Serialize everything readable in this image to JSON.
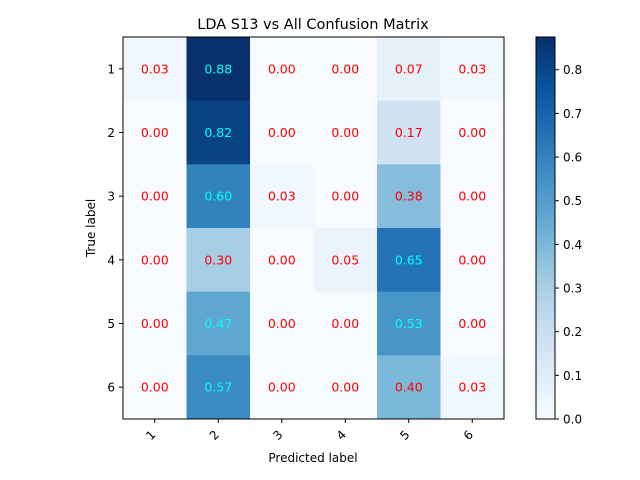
{
  "chart_data": {
    "type": "heatmap",
    "title": "LDA S13 vs All Confusion Matrix",
    "xlabel": "Predicted label",
    "ylabel": "True label",
    "x_categories": [
      "1",
      "2",
      "3",
      "4",
      "5",
      "6"
    ],
    "y_categories": [
      "1",
      "2",
      "3",
      "4",
      "5",
      "6"
    ],
    "values": [
      [
        0.03,
        0.88,
        0.0,
        0.0,
        0.07,
        0.03
      ],
      [
        0.0,
        0.82,
        0.0,
        0.0,
        0.17,
        0.0
      ],
      [
        0.0,
        0.6,
        0.03,
        0.0,
        0.38,
        0.0
      ],
      [
        0.0,
        0.3,
        0.0,
        0.05,
        0.65,
        0.0
      ],
      [
        0.0,
        0.47,
        0.0,
        0.0,
        0.53,
        0.0
      ],
      [
        0.0,
        0.57,
        0.0,
        0.0,
        0.4,
        0.03
      ]
    ],
    "colormap": "Blues",
    "colorbar": {
      "range": [
        0.0,
        0.875
      ],
      "ticks": [
        "0.0",
        "0.1",
        "0.2",
        "0.3",
        "0.4",
        "0.5",
        "0.6",
        "0.7",
        "0.8"
      ]
    },
    "annotation_colors": {
      "low": "#ff0000",
      "high": "#00ffff"
    },
    "annotation_threshold": 0.44,
    "grid": false
  }
}
